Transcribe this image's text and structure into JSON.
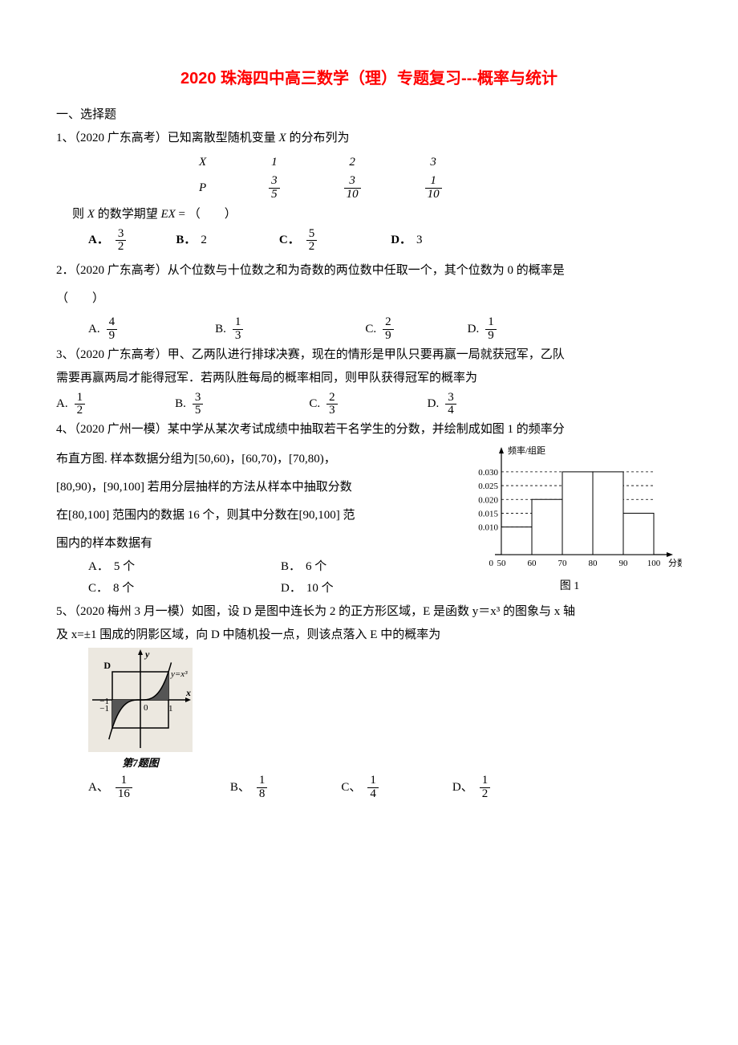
{
  "title": "2020 珠海四中高三数学（理）专题复习---概率与统计",
  "section": "一、选择题",
  "q1": {
    "stem_a": "1、（2020 广东高考）已知离散型随机变量 ",
    "var_x": "X",
    "stem_b": " 的分布列为",
    "table": {
      "row_x": "X",
      "row_p": "P",
      "x_vals": [
        "1",
        "2",
        "3"
      ],
      "p_nums": [
        "3",
        "3",
        "1"
      ],
      "p_dens": [
        "5",
        "10",
        "10"
      ]
    },
    "stem2_a": "则 ",
    "stem2_b": " 的数学期望 ",
    "ex_label": "EX",
    "stem2_c": " = （　　）",
    "opts": {
      "A": {
        "label": "A．",
        "num": "3",
        "den": "2"
      },
      "B": {
        "label": "B．",
        "val": "2"
      },
      "C": {
        "label": "C．",
        "num": "5",
        "den": "2"
      },
      "D": {
        "label": "D．",
        "val": "3"
      }
    }
  },
  "q2": {
    "stem": "2．（2020 广东高考）从个位数与十位数之和为奇数的两位数中任取一个，其个位数为 0 的概率是",
    "blank": "（　　）",
    "opts": {
      "A": {
        "label": "A.",
        "num": "4",
        "den": "9"
      },
      "B": {
        "label": "B.",
        "num": "1",
        "den": "3"
      },
      "C": {
        "label": "C.",
        "num": "2",
        "den": "9"
      },
      "D": {
        "label": "D.",
        "num": "1",
        "den": "9"
      }
    }
  },
  "q3": {
    "stem1": "3、（2020 广东高考）甲、乙两队进行排球决赛，现在的情形是甲队只要再赢一局就获冠军，乙队",
    "stem2": "需要再赢两局才能得冠军．若两队胜每局的概率相同，则甲队获得冠军的概率为",
    "opts": {
      "A": {
        "label": "A.",
        "num": "1",
        "den": "2"
      },
      "B": {
        "label": "B.",
        "num": "3",
        "den": "5"
      },
      "C": {
        "label": "C.",
        "num": "2",
        "den": "3"
      },
      "D": {
        "label": "D.",
        "num": "3",
        "den": "4"
      }
    }
  },
  "q4": {
    "line1": " 4、（2020 广州一模）某中学从某次考试成绩中抽取若干名学生的分数，并绘制成如图 1 的频率分",
    "line2a": "布直方图. 样本数据分组为",
    "intervals1": "[50,60)，[60,70)，[70,80)，",
    "line3a": "[80,90)，[90,100]",
    "line3b": " 若用分层抽样的方法从样本中抽取分数",
    "line4a": "在",
    "interval_a": "[80,100]",
    "line4b": " 范围内的数据 16 个，则其中分数在",
    "interval_b": "[90,100]",
    "line4c": " 范",
    "line5": "围内的样本数据有",
    "opts": {
      "A": {
        "label": "A．",
        "val": "5 个"
      },
      "B": {
        "label": "B．",
        "val": "6 个"
      },
      "C": {
        "label": "C．",
        "val": "8 个"
      },
      "D": {
        "label": "D．",
        "val": "10 个"
      }
    },
    "hist": {
      "ylabel": "频率/组距",
      "xlabel": "分数",
      "caption": "图 1",
      "yticks": [
        "0.010",
        "0.015",
        "0.020",
        "0.025",
        "0.030"
      ],
      "yvals": [
        0.01,
        0.015,
        0.02,
        0.025,
        0.03
      ],
      "xticks": [
        "50",
        "60",
        "70",
        "80",
        "90",
        "100"
      ],
      "bars": [
        0.01,
        0.02,
        0.03,
        0.03,
        0.015
      ],
      "axis_color": "#000000",
      "dash_color": "#000000",
      "bar_fill": "#ffffff",
      "bar_stroke": "#000000"
    }
  },
  "q5": {
    "stem1": "5、（2020 梅州 3 月一模）如图，设 D 是图中连长为 2 的正方形区域，E 是函数 y＝x³ 的图象与 x 轴",
    "stem2": "及 x=±1 围成的阴影区域，向 D 中随机投一点，则该点落入 E 中的概率为",
    "img_caption": "第7题图",
    "labels": {
      "D": "D",
      "y": "y",
      "curve": "y=x³",
      "x": "x",
      "m1": "−1",
      "p1": "1"
    },
    "opts": {
      "A": {
        "label": "A、",
        "num": "1",
        "den": "16"
      },
      "B": {
        "label": "B、",
        "num": "1",
        "den": "8"
      },
      "C": {
        "label": "C、",
        "num": "1",
        "den": "4"
      },
      "D": {
        "label": "D、",
        "num": "1",
        "den": "2"
      }
    }
  }
}
